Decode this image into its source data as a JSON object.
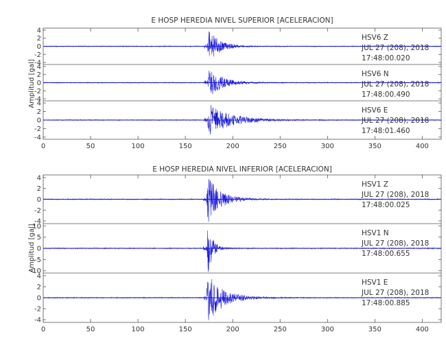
{
  "colors": {
    "trace": "#1a1adb",
    "axis": "#555555",
    "text": "#333333"
  },
  "chart_data": [
    {
      "type": "line",
      "title": "E HOSP HEREDIA NIVEL SUPERIOR [ACELERACION]",
      "ylabel": "Amplitud [gal]",
      "xlim": [
        0,
        420
      ],
      "xticks": [
        0,
        50,
        100,
        150,
        200,
        250,
        300,
        350,
        400
      ],
      "series": [
        {
          "name": "HSV6 Z",
          "station": "HSV6",
          "component": "Z",
          "date": "JUL 27 (208), 2018",
          "time": "17:48:00.020",
          "ylim": [
            -4.5,
            4.5
          ],
          "yticks": [
            4,
            2,
            0,
            -2,
            -4
          ],
          "onset": 173,
          "peak": 4.3,
          "noise": 0.12,
          "decay": 11
        },
        {
          "name": "HSV6 N",
          "station": "HSV6",
          "component": "N",
          "date": "JUL 27 (208), 2018",
          "time": "17:48:00.490",
          "ylim": [
            -4.5,
            4.5
          ],
          "yticks": [
            4,
            2,
            0,
            -2,
            -4
          ],
          "onset": 173,
          "peak": 3.6,
          "noise": 0.12,
          "decay": 14
        },
        {
          "name": "HSV6 E",
          "station": "HSV6",
          "component": "E",
          "date": "JUL 27 (208), 2018",
          "time": "17:48:01.460",
          "ylim": [
            -4.5,
            4.5
          ],
          "yticks": [
            4,
            2,
            0,
            -2,
            -4
          ],
          "onset": 173,
          "peak": 3.9,
          "noise": 0.12,
          "decay": 22
        }
      ]
    },
    {
      "type": "line",
      "title": "E HOSP HEREDIA NIVEL INFERIOR [ACELERACION]",
      "ylabel": "Amplitud [gal]",
      "xlim": [
        0,
        420
      ],
      "xticks": [
        0,
        50,
        100,
        150,
        200,
        250,
        300,
        350,
        400
      ],
      "series": [
        {
          "name": "HSV1 Z",
          "station": "HSV1",
          "component": "Z",
          "date": "JUL 27 (208), 2018",
          "time": "17:48:00.025",
          "ylim": [
            -4.5,
            4.5
          ],
          "yticks": [
            4,
            2,
            0,
            -2,
            -4
          ],
          "onset": 172,
          "peak": 4.3,
          "noise": 0.1,
          "decay": 13
        },
        {
          "name": "HSV1 N",
          "station": "HSV1",
          "component": "N",
          "date": "JUL 27 (208), 2018",
          "time": "17:48:00.655",
          "ylim": [
            -11,
            11
          ],
          "yticks": [
            10,
            5,
            0,
            -5,
            -10
          ],
          "onset": 172,
          "peak": 11,
          "noise": 0.25,
          "decay": 5
        },
        {
          "name": "HSV1 E",
          "station": "HSV1",
          "component": "E",
          "date": "JUL 27 (208), 2018",
          "time": "17:48:00.885",
          "ylim": [
            -4.5,
            4.5
          ],
          "yticks": [
            4,
            2,
            0,
            -2,
            -4
          ],
          "onset": 172,
          "peak": 4.5,
          "noise": 0.1,
          "decay": 16
        }
      ]
    }
  ]
}
